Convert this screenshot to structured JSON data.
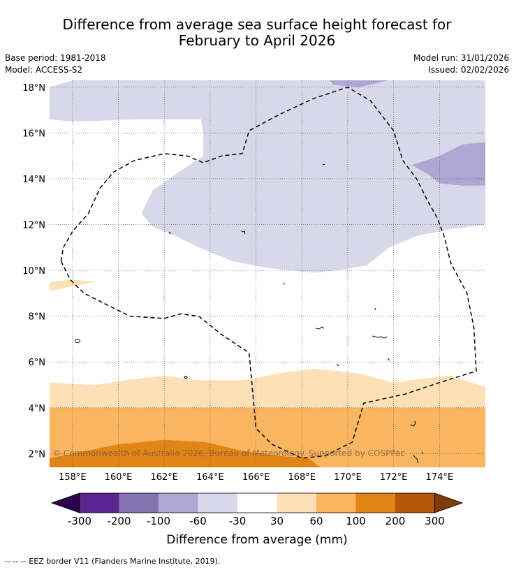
{
  "header": {
    "title_line1": "Difference from average sea surface height forecast for",
    "title_line2": "February to April 2026",
    "base_period": "Base period: 1981-2018",
    "model": "Model: ACCESS-S2",
    "model_run": "Model run: 31/01/2026",
    "issued": "Issued: 02/02/2026"
  },
  "map": {
    "copyright": "© Commonwealth of Australia 2026, Bureau of Meteorology. Supported by COSPPac",
    "lon_range": [
      157,
      176
    ],
    "lat_range": [
      1.4,
      18.3
    ]
  },
  "chart_data": {
    "type": "heatmap",
    "title": "Difference from average sea surface height forecast for February to April 2026",
    "x_ticks": [
      {
        "value": 158,
        "label": "158°E"
      },
      {
        "value": 160,
        "label": "160°E"
      },
      {
        "value": 162,
        "label": "162°E"
      },
      {
        "value": 164,
        "label": "164°E"
      },
      {
        "value": 166,
        "label": "166°E"
      },
      {
        "value": 168,
        "label": "168°E"
      },
      {
        "value": 170,
        "label": "170°E"
      },
      {
        "value": 172,
        "label": "172°E"
      },
      {
        "value": 174,
        "label": "174°E"
      }
    ],
    "y_ticks": [
      {
        "value": 2,
        "label": "2°N"
      },
      {
        "value": 4,
        "label": "4°N"
      },
      {
        "value": 6,
        "label": "6°N"
      },
      {
        "value": 8,
        "label": "8°N"
      },
      {
        "value": 10,
        "label": "10°N"
      },
      {
        "value": 12,
        "label": "12°N"
      },
      {
        "value": 14,
        "label": "14°N"
      },
      {
        "value": 16,
        "label": "16°N"
      },
      {
        "value": 18,
        "label": "18°N"
      }
    ],
    "colorbar": {
      "label": "Difference from average (mm)",
      "tick_labels": [
        "-300",
        "-200",
        "-100",
        "-60",
        "-30",
        "30",
        "60",
        "100",
        "200",
        "300"
      ],
      "bins": [
        {
          "range": [
            -300,
            -200
          ],
          "color": "#5a2590"
        },
        {
          "range": [
            -200,
            -100
          ],
          "color": "#8472b0"
        },
        {
          "range": [
            -100,
            -60
          ],
          "color": "#aea7d2"
        },
        {
          "range": [
            -60,
            -30
          ],
          "color": "#d8d8ea"
        },
        {
          "range": [
            -30,
            30
          ],
          "color": "#ffffff"
        },
        {
          "range": [
            30,
            60
          ],
          "color": "#fde0b6"
        },
        {
          "range": [
            60,
            100
          ],
          "color": "#f9b55f"
        },
        {
          "range": [
            100,
            200
          ],
          "color": "#e38416"
        },
        {
          "range": [
            200,
            300
          ],
          "color": "#b35806"
        }
      ],
      "under_color": "#2d004b",
      "over_color": "#7f3b08"
    },
    "regions": [
      {
        "category": "-60 to -30",
        "color": "#d8d8ea",
        "outline_lonlat": [
          [
            157,
            18
          ],
          [
            158,
            18.3
          ],
          [
            176,
            18.3
          ],
          [
            176,
            12
          ],
          [
            174.5,
            11.8
          ],
          [
            173,
            11.5
          ],
          [
            171.8,
            11
          ],
          [
            170.8,
            10.2
          ],
          [
            169.5,
            10
          ],
          [
            168.5,
            9.9
          ],
          [
            166.5,
            10.1
          ],
          [
            165,
            10.4
          ],
          [
            163.5,
            11
          ],
          [
            162.5,
            11.5
          ],
          [
            161.5,
            11.9
          ],
          [
            161,
            12.5
          ],
          [
            161.5,
            13.5
          ],
          [
            162.5,
            14.2
          ],
          [
            163.7,
            15
          ],
          [
            163.7,
            16
          ],
          [
            163.6,
            16.6
          ],
          [
            161,
            16.6
          ],
          [
            158,
            16.5
          ],
          [
            157,
            16.6
          ]
        ]
      },
      {
        "category": "-100 to -60",
        "color": "#aea7d2",
        "outline_lonlat": [
          [
            172.8,
            14.6
          ],
          [
            174,
            15
          ],
          [
            175,
            15.5
          ],
          [
            176,
            15.6
          ],
          [
            176,
            13.7
          ],
          [
            175,
            13.7
          ],
          [
            174,
            13.8
          ],
          [
            173.5,
            14.2
          ]
        ]
      },
      {
        "category": "-100 to -60",
        "color": "#aea7d2",
        "outline_lonlat": [
          [
            169.2,
            18.3
          ],
          [
            169.4,
            18.1
          ],
          [
            170.5,
            18.0
          ],
          [
            171.8,
            18.3
          ]
        ]
      },
      {
        "category": "30 to 60",
        "color": "#fde0b6",
        "outline_lonlat": [
          [
            157,
            5.1
          ],
          [
            159,
            5
          ],
          [
            161,
            5.3
          ],
          [
            162,
            5.4
          ],
          [
            163.5,
            5.2
          ],
          [
            165.5,
            5.2
          ],
          [
            167,
            5.5
          ],
          [
            168.5,
            5.7
          ],
          [
            169.5,
            5.6
          ],
          [
            170.5,
            5.5
          ],
          [
            172,
            5.1
          ],
          [
            173.5,
            5.3
          ],
          [
            174.5,
            5.4
          ],
          [
            176,
            4.9
          ],
          [
            176,
            4
          ],
          [
            157,
            4
          ]
        ]
      },
      {
        "category": "60 to 100",
        "color": "#f9b55f",
        "outline_lonlat": [
          [
            157,
            4
          ],
          [
            176,
            4
          ],
          [
            176,
            1.4
          ],
          [
            157,
            1.4
          ]
        ]
      },
      {
        "category": "100 to 200",
        "color": "#e38416",
        "outline_lonlat": [
          [
            157,
            1.8
          ],
          [
            160,
            2.4
          ],
          [
            162,
            2.6
          ],
          [
            163.8,
            2.5
          ],
          [
            165.5,
            2.1
          ],
          [
            167,
            1.9
          ],
          [
            168.3,
            1.8
          ],
          [
            168.8,
            1.4
          ],
          [
            157,
            1.4
          ]
        ]
      },
      {
        "category": "30 to 60",
        "color": "#fde0b6",
        "outline_lonlat": [
          [
            157,
            9.5
          ],
          [
            158,
            9.6
          ],
          [
            159,
            9.5
          ],
          [
            158,
            9.3
          ],
          [
            157,
            9.1
          ]
        ]
      }
    ],
    "eez_border_lonlat": [
      [
        157.5,
        10.4
      ],
      [
        157.6,
        11
      ],
      [
        158,
        11.7
      ],
      [
        158.7,
        12.5
      ],
      [
        159.2,
        13.6
      ],
      [
        159.8,
        14.3
      ],
      [
        160.7,
        14.8
      ],
      [
        162,
        15.1
      ],
      [
        163,
        15
      ],
      [
        163.7,
        14.7
      ],
      [
        164.5,
        15
      ],
      [
        165.4,
        15.1
      ],
      [
        165.7,
        16.1
      ],
      [
        167,
        16.8
      ],
      [
        168.5,
        17.5
      ],
      [
        170,
        18
      ],
      [
        171,
        17.4
      ],
      [
        172,
        16.1
      ],
      [
        172.4,
        14.8
      ],
      [
        173,
        14
      ],
      [
        173.5,
        13
      ],
      [
        173.9,
        12.3
      ],
      [
        174.2,
        11.5
      ],
      [
        174.5,
        10.3
      ],
      [
        175.2,
        9
      ],
      [
        175.5,
        7.5
      ],
      [
        175.6,
        5.6
      ],
      [
        174,
        5.1
      ],
      [
        172.5,
        4.6
      ],
      [
        170.7,
        4.2
      ],
      [
        170.2,
        2.5
      ],
      [
        169,
        1.9
      ],
      [
        168,
        1.8
      ],
      [
        166.7,
        2.4
      ],
      [
        166,
        3.1
      ],
      [
        165.7,
        6.4
      ],
      [
        164.5,
        7.2
      ],
      [
        163.5,
        8
      ],
      [
        162.7,
        8.1
      ],
      [
        162,
        7.9
      ],
      [
        160.5,
        8
      ],
      [
        159.5,
        8.5
      ],
      [
        158.5,
        9
      ],
      [
        157.9,
        9.6
      ],
      [
        157.5,
        10.4
      ]
    ],
    "footer_note": "--  --  -- EEZ border V11 (Flanders Marine Institute, 2019)."
  }
}
